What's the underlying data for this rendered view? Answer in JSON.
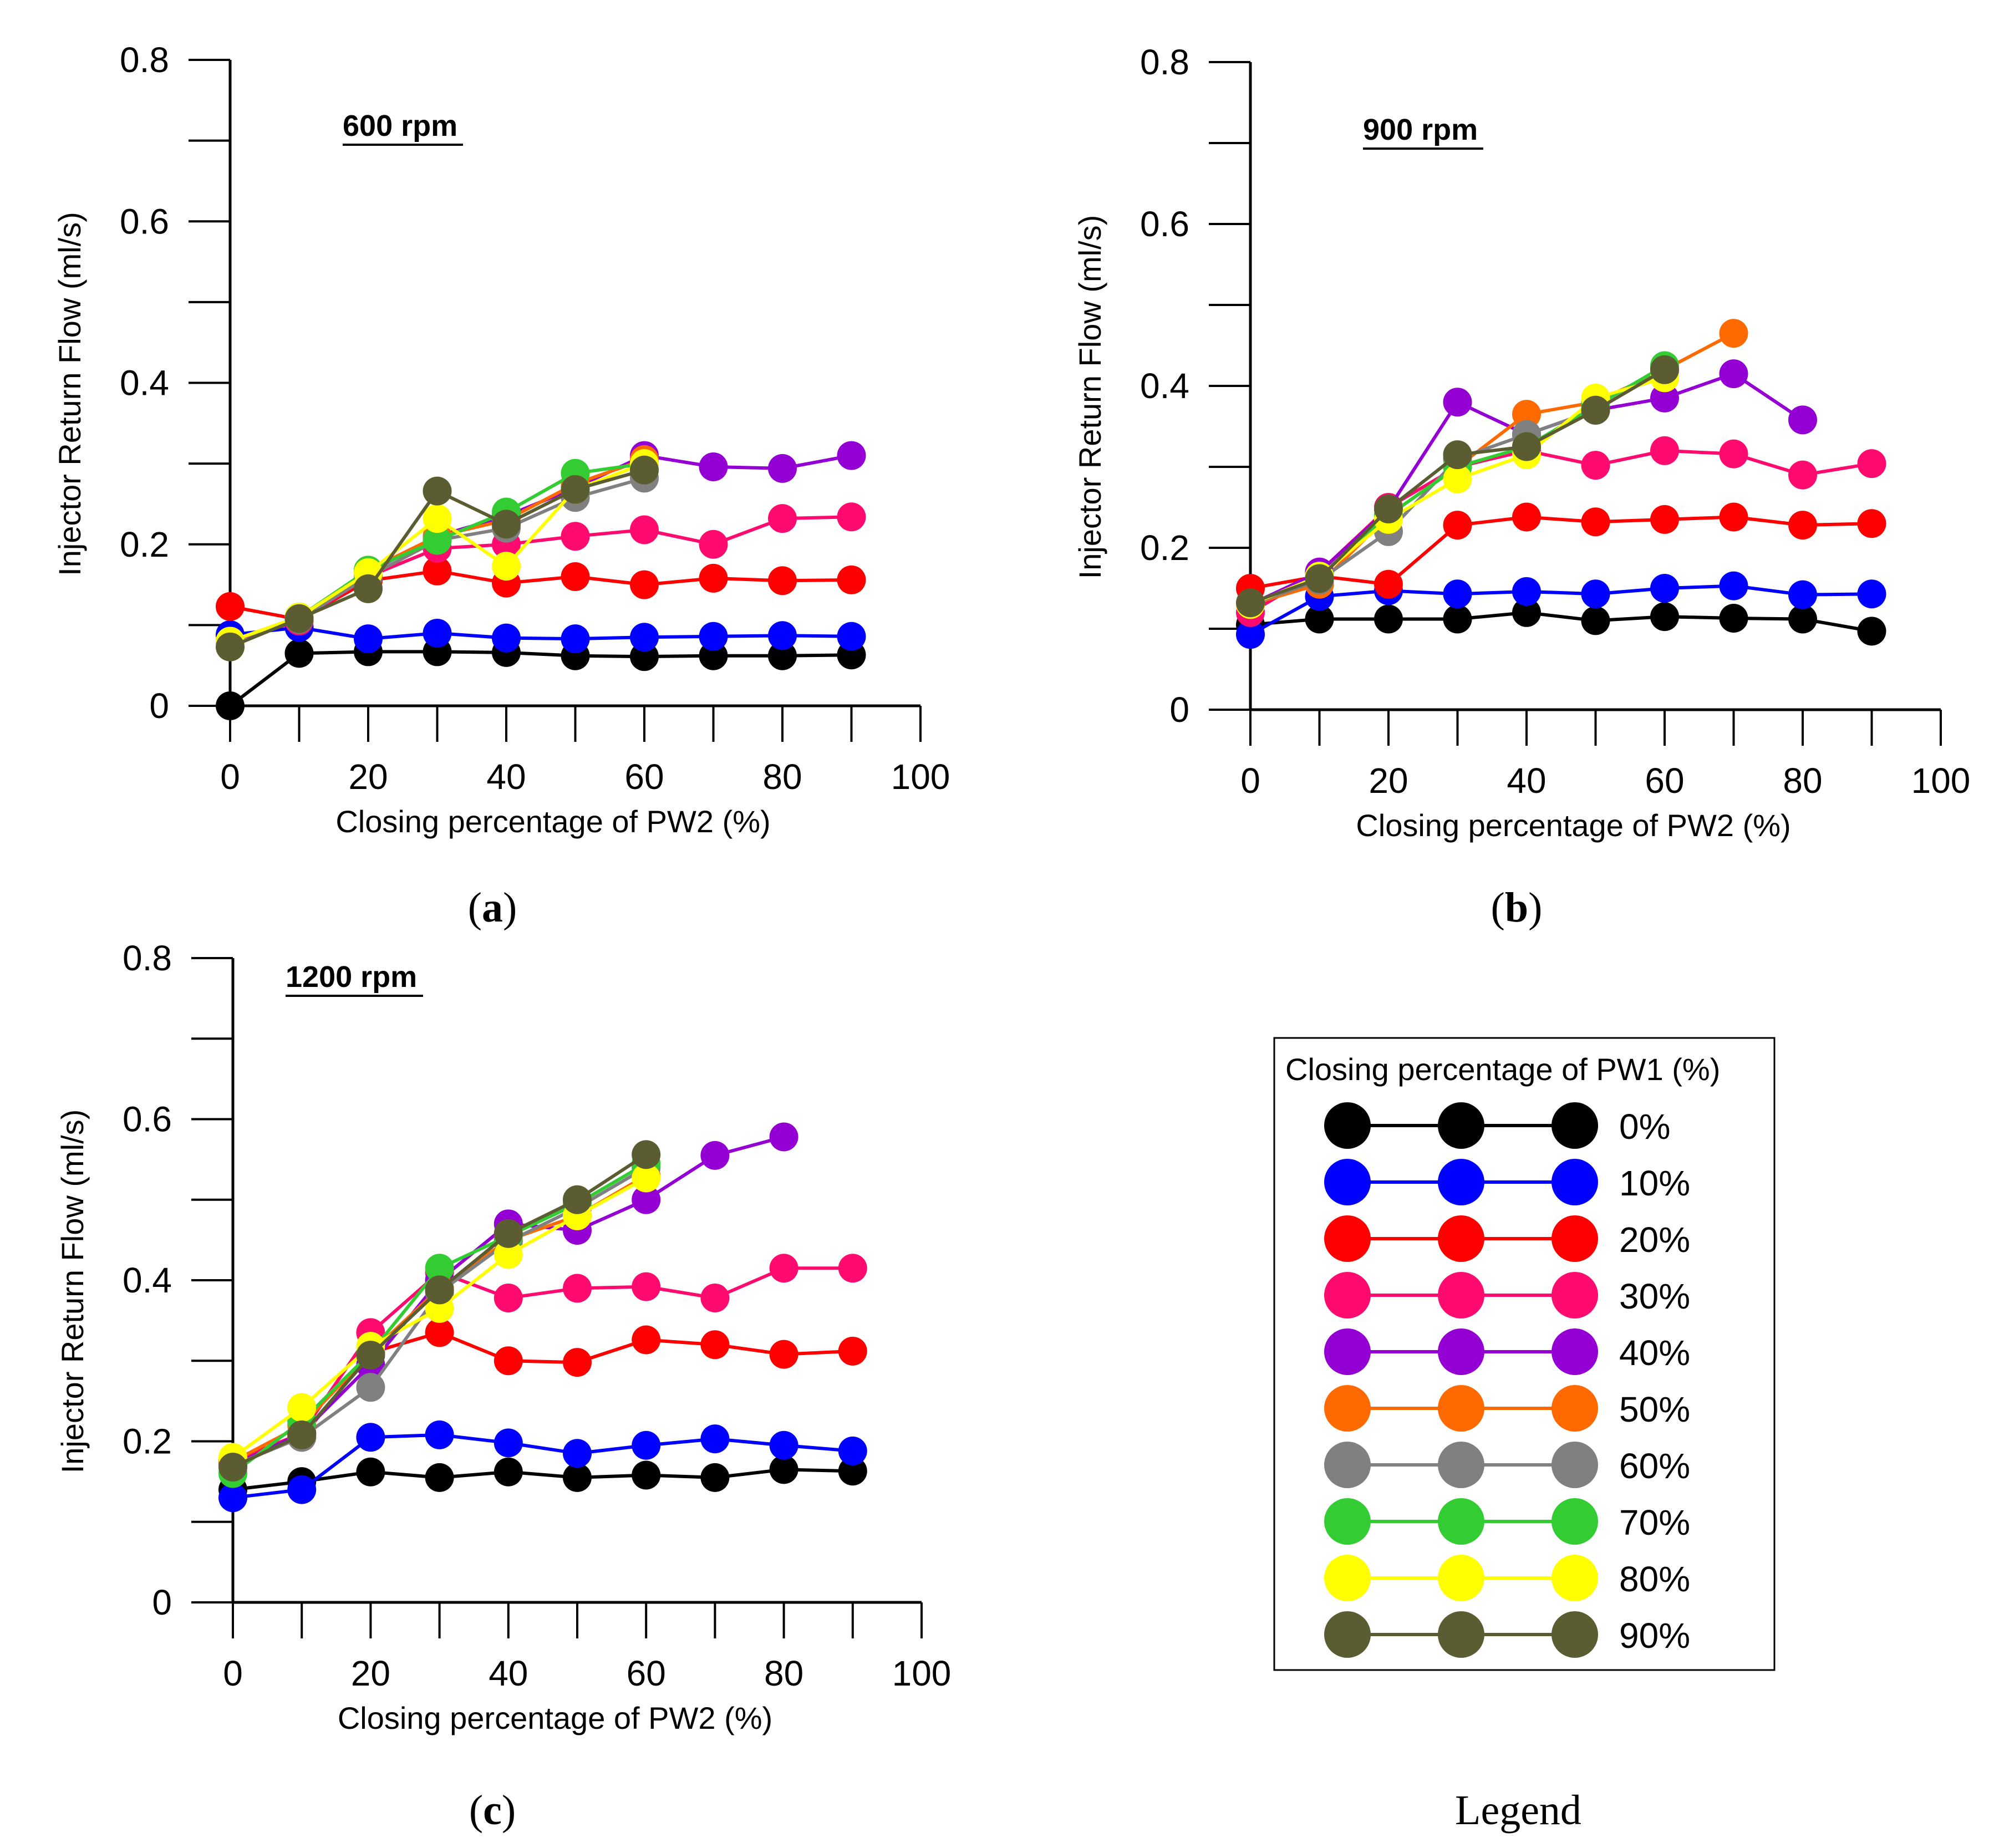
{
  "colors": {
    "0%": "#000000",
    "10%": "#0000ff",
    "20%": "#ff0000",
    "30%": "#ff0a6e",
    "40%": "#9400d3",
    "50%": "#ff6a00",
    "60%": "#808080",
    "70%": "#33cc33",
    "80%": "#ffff00",
    "90%": "#5c5c32"
  },
  "legend": {
    "title": "Closing percentage of PW1 (%)",
    "entries": [
      "0%",
      "10%",
      "20%",
      "30%",
      "40%",
      "50%",
      "60%",
      "70%",
      "80%",
      "90%"
    ],
    "caption": "Legend"
  },
  "chart_data": [
    {
      "type": "line",
      "title": "600 rpm",
      "caption_letter": "a",
      "xlabel": "Closing percentage of PW2 (%)",
      "ylabel": "Injector Return Flow (ml/s)",
      "xlim": [
        0,
        100
      ],
      "ylim": [
        0,
        0.8
      ],
      "xticks": [
        "0",
        "20",
        "40",
        "60",
        "80",
        "100"
      ],
      "yticks": [
        "0",
        "0.2",
        "0.4",
        "0.6",
        "0.8"
      ],
      "series": [
        {
          "name": "0%",
          "x": [
            0,
            10,
            20,
            30,
            40,
            50,
            60,
            70,
            80,
            90
          ],
          "values": [
            0.0,
            0.065,
            0.067,
            0.067,
            0.066,
            0.062,
            0.061,
            0.062,
            0.062,
            0.063
          ]
        },
        {
          "name": "10%",
          "x": [
            0,
            10,
            20,
            30,
            40,
            50,
            60,
            70,
            80,
            90
          ],
          "values": [
            0.088,
            0.097,
            0.083,
            0.09,
            0.084,
            0.083,
            0.085,
            0.086,
            0.087,
            0.086
          ]
        },
        {
          "name": "20%",
          "x": [
            0,
            10,
            20,
            30,
            40,
            50,
            60,
            70,
            80,
            90
          ],
          "values": [
            0.123,
            0.107,
            0.155,
            0.167,
            0.152,
            0.16,
            0.15,
            0.158,
            0.155,
            0.156
          ]
        },
        {
          "name": "30%",
          "x": [
            0,
            10,
            20,
            30,
            40,
            50,
            60,
            70,
            80,
            90
          ],
          "values": [
            0.08,
            0.105,
            0.16,
            0.195,
            0.2,
            0.21,
            0.218,
            0.2,
            0.232,
            0.234
          ]
        },
        {
          "name": "40%",
          "x": [
            0,
            10,
            20,
            30,
            40,
            50,
            60,
            70,
            80,
            90
          ],
          "values": [
            0.08,
            0.108,
            0.165,
            0.21,
            0.235,
            0.27,
            0.31,
            0.296,
            0.294,
            0.31
          ]
        },
        {
          "name": "50%",
          "x": [
            0,
            10,
            20,
            30,
            40,
            50,
            60
          ],
          "values": [
            0.08,
            0.11,
            0.168,
            0.21,
            0.23,
            0.275,
            0.305
          ]
        },
        {
          "name": "60%",
          "x": [
            0,
            10,
            20,
            30,
            40,
            50,
            60
          ],
          "values": [
            0.08,
            0.107,
            0.16,
            0.205,
            0.22,
            0.258,
            0.282
          ]
        },
        {
          "name": "70%",
          "x": [
            0,
            10,
            20,
            30,
            40,
            50,
            60
          ],
          "values": [
            0.08,
            0.11,
            0.168,
            0.205,
            0.24,
            0.288,
            0.3
          ]
        },
        {
          "name": "80%",
          "x": [
            0,
            10,
            20,
            30,
            40,
            50,
            60
          ],
          "values": [
            0.08,
            0.11,
            0.165,
            0.232,
            0.173,
            0.268,
            0.3
          ]
        },
        {
          "name": "90%",
          "x": [
            0,
            10,
            20,
            30,
            40,
            50,
            60
          ],
          "values": [
            0.073,
            0.108,
            0.145,
            0.266,
            0.225,
            0.268,
            0.292
          ]
        }
      ]
    },
    {
      "type": "line",
      "title": "900 rpm",
      "caption_letter": "b",
      "xlabel": "Closing percentage of PW2 (%)",
      "ylabel": "Injector Return Flow (ml/s)",
      "xlim": [
        0,
        100
      ],
      "ylim": [
        0,
        0.8
      ],
      "xticks": [
        "0",
        "20",
        "40",
        "60",
        "80",
        "100"
      ],
      "yticks": [
        "0",
        "0.2",
        "0.4",
        "0.6",
        "0.8"
      ],
      "series": [
        {
          "name": "0%",
          "x": [
            0,
            10,
            20,
            30,
            40,
            50,
            60,
            70,
            80,
            90
          ],
          "values": [
            0.105,
            0.112,
            0.112,
            0.112,
            0.12,
            0.11,
            0.115,
            0.113,
            0.112,
            0.097
          ]
        },
        {
          "name": "10%",
          "x": [
            0,
            10,
            20,
            30,
            40,
            50,
            60,
            70,
            80,
            90
          ],
          "values": [
            0.093,
            0.14,
            0.147,
            0.143,
            0.146,
            0.143,
            0.15,
            0.153,
            0.142,
            0.143
          ]
        },
        {
          "name": "20%",
          "x": [
            0,
            10,
            20,
            30,
            40,
            50,
            60,
            70,
            80,
            90
          ],
          "values": [
            0.15,
            0.165,
            0.155,
            0.228,
            0.238,
            0.232,
            0.235,
            0.238,
            0.228,
            0.23
          ]
        },
        {
          "name": "30%",
          "x": [
            0,
            10,
            20,
            30,
            40,
            50,
            60,
            70,
            80,
            90
          ],
          "values": [
            0.12,
            0.17,
            0.25,
            0.3,
            0.32,
            0.302,
            0.32,
            0.316,
            0.29,
            0.304
          ]
        },
        {
          "name": "40%",
          "x": [
            0,
            10,
            20,
            30,
            40,
            50,
            60,
            70,
            80
          ],
          "values": [
            0.13,
            0.17,
            0.248,
            0.38,
            0.34,
            0.37,
            0.385,
            0.415,
            0.358
          ]
        },
        {
          "name": "50%",
          "x": [
            0,
            10,
            20,
            30,
            40,
            50,
            60,
            70
          ],
          "values": [
            0.13,
            0.155,
            0.24,
            0.3,
            0.365,
            0.38,
            0.42,
            0.465
          ]
        },
        {
          "name": "60%",
          "x": [
            0,
            10,
            20,
            30,
            40,
            50,
            60
          ],
          "values": [
            0.13,
            0.16,
            0.22,
            0.31,
            0.34,
            0.37,
            0.42
          ]
        },
        {
          "name": "70%",
          "x": [
            0,
            10,
            20,
            30,
            40,
            50,
            60
          ],
          "values": [
            0.13,
            0.165,
            0.24,
            0.3,
            0.325,
            0.375,
            0.425
          ]
        },
        {
          "name": "80%",
          "x": [
            0,
            10,
            20,
            30,
            40,
            50,
            60
          ],
          "values": [
            0.13,
            0.165,
            0.235,
            0.285,
            0.315,
            0.385,
            0.41
          ]
        },
        {
          "name": "90%",
          "x": [
            0,
            10,
            20,
            30,
            40,
            50,
            60
          ],
          "values": [
            0.132,
            0.162,
            0.248,
            0.315,
            0.325,
            0.37,
            0.42
          ]
        }
      ]
    },
    {
      "type": "line",
      "title": "1200 rpm",
      "caption_letter": "c",
      "xlabel": "Closing percentage of PW2 (%)",
      "ylabel": "Injector Return Flow (ml/s)",
      "xlim": [
        0,
        100
      ],
      "ylim": [
        0,
        0.8
      ],
      "xticks": [
        "0",
        "20",
        "40",
        "60",
        "80",
        "100"
      ],
      "yticks": [
        "0",
        "0.2",
        "0.4",
        "0.6",
        "0.8"
      ],
      "series": [
        {
          "name": "0%",
          "x": [
            0,
            10,
            20,
            30,
            40,
            50,
            60,
            70,
            80,
            90
          ],
          "values": [
            0.14,
            0.15,
            0.162,
            0.155,
            0.162,
            0.155,
            0.158,
            0.155,
            0.165,
            0.163
          ]
        },
        {
          "name": "10%",
          "x": [
            0,
            10,
            20,
            30,
            40,
            50,
            60,
            70,
            80,
            90
          ],
          "values": [
            0.13,
            0.14,
            0.205,
            0.208,
            0.198,
            0.185,
            0.195,
            0.203,
            0.195,
            0.188
          ]
        },
        {
          "name": "20%",
          "x": [
            0,
            10,
            20,
            30,
            40,
            50,
            60,
            70,
            80,
            90
          ],
          "values": [
            0.175,
            0.205,
            0.31,
            0.335,
            0.3,
            0.298,
            0.326,
            0.32,
            0.308,
            0.312
          ]
        },
        {
          "name": "30%",
          "x": [
            0,
            10,
            20,
            30,
            40,
            50,
            60,
            70,
            80,
            90
          ],
          "values": [
            0.175,
            0.21,
            0.335,
            0.41,
            0.378,
            0.39,
            0.392,
            0.378,
            0.415,
            0.415
          ]
        },
        {
          "name": "40%",
          "x": [
            0,
            10,
            20,
            30,
            40,
            50,
            60,
            70,
            80
          ],
          "values": [
            0.17,
            0.21,
            0.295,
            0.4,
            0.47,
            0.462,
            0.5,
            0.555,
            0.578
          ]
        },
        {
          "name": "50%",
          "x": [
            0,
            10,
            20,
            30,
            40,
            50,
            60
          ],
          "values": [
            0.175,
            0.22,
            0.31,
            0.39,
            0.45,
            0.48,
            0.53
          ]
        },
        {
          "name": "60%",
          "x": [
            0,
            10,
            20,
            30,
            40,
            50,
            60
          ],
          "values": [
            0.17,
            0.205,
            0.267,
            0.385,
            0.448,
            0.49,
            0.54
          ]
        },
        {
          "name": "70%",
          "x": [
            0,
            10,
            20,
            30,
            40,
            50,
            60
          ],
          "values": [
            0.16,
            0.225,
            0.31,
            0.415,
            0.455,
            0.495,
            0.545
          ]
        },
        {
          "name": "80%",
          "x": [
            0,
            10,
            20,
            30,
            40,
            50,
            60
          ],
          "values": [
            0.18,
            0.242,
            0.318,
            0.365,
            0.432,
            0.48,
            0.527
          ]
        },
        {
          "name": "90%",
          "x": [
            0,
            10,
            20,
            30,
            40,
            50,
            60
          ],
          "values": [
            0.168,
            0.208,
            0.307,
            0.388,
            0.458,
            0.5,
            0.556
          ]
        }
      ]
    }
  ]
}
